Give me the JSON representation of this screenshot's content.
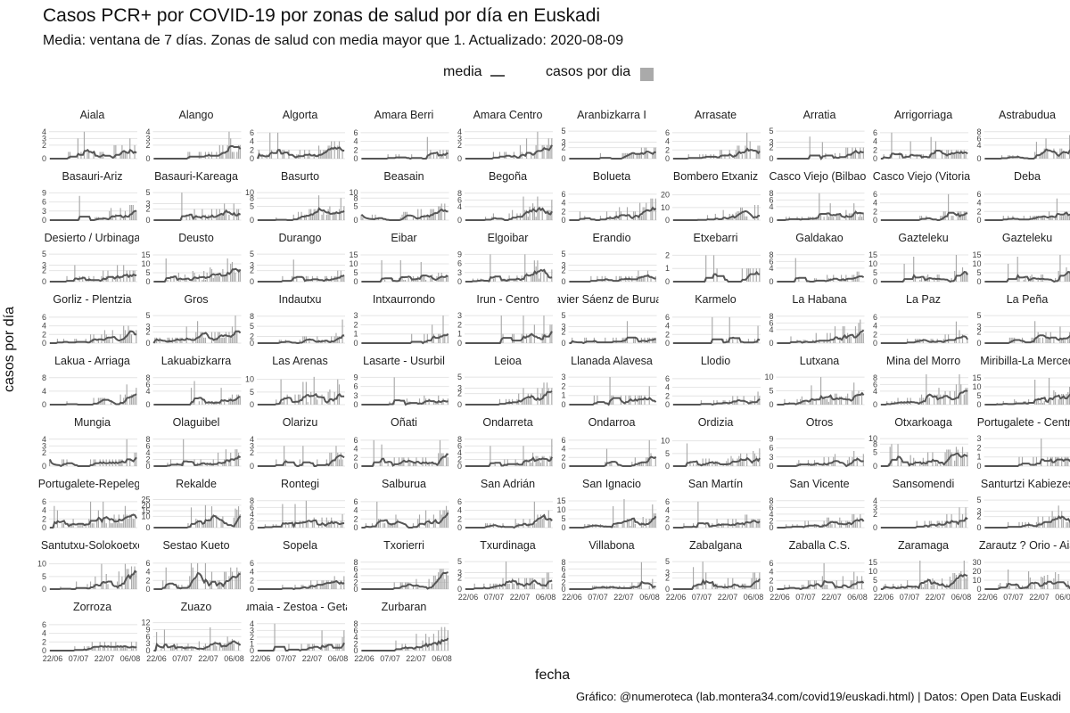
{
  "header": {
    "title": "Casos PCR+ por COVID-19 por zonas de salud por día en Euskadi",
    "subtitle": "Media: ventana de 7 días. Zonas de salud con media mayor que 1. Actualizado: 2020-08-09"
  },
  "legend": {
    "mean_label": "media",
    "bars_label": "casos por dia"
  },
  "colors": {
    "mean_line": "#555555",
    "bars": "#aaaaaa",
    "gridlines": "#e4e4e4"
  },
  "chart_data": {
    "type": "bar",
    "facet": "small multiples, 10 columns",
    "xlabel": "fecha",
    "ylabel": "casos por día",
    "x_ticks": [
      "22/06",
      "07/07",
      "22/07",
      "06/08"
    ],
    "date_range": [
      "2020-06-15",
      "2020-08-09"
    ],
    "series_names": [
      "media",
      "casos por dia"
    ],
    "panels": [
      {
        "name": "Aiala",
        "yticks": [
          0,
          2,
          3,
          4
        ],
        "ymax": 4.5
      },
      {
        "name": "Alango",
        "yticks": [
          0,
          2,
          3,
          4
        ],
        "ymax": 4.5
      },
      {
        "name": "Algorta",
        "yticks": [
          0,
          2,
          4,
          6
        ],
        "ymax": 7
      },
      {
        "name": "Amara Berri",
        "yticks": [
          0,
          2,
          4,
          6
        ],
        "ymax": 7
      },
      {
        "name": "Amara Centro",
        "yticks": [
          0,
          2,
          3,
          4
        ],
        "ymax": 4.5
      },
      {
        "name": "Aranbizkarra I",
        "yticks": [
          0,
          2,
          3,
          5
        ],
        "ymax": 5.5
      },
      {
        "name": "Arrasate",
        "yticks": [
          0,
          2,
          4,
          6
        ],
        "ymax": 7
      },
      {
        "name": "Arratia",
        "yticks": [
          0,
          2,
          3,
          5
        ],
        "ymax": 5.5
      },
      {
        "name": "Arrigorriaga",
        "yticks": [
          0,
          2,
          4,
          6
        ],
        "ymax": 7
      },
      {
        "name": "Astrabudua",
        "yticks": [
          0,
          4,
          6,
          8
        ],
        "ymax": 9
      },
      {
        "name": "Basauri-Ariz",
        "yticks": [
          0,
          3,
          6,
          9
        ],
        "ymax": 10
      },
      {
        "name": "Basauri-Kareaga",
        "yticks": [
          0,
          2,
          3,
          5
        ],
        "ymax": 5.5
      },
      {
        "name": "Basurto",
        "yticks": [
          0,
          5,
          8,
          10
        ],
        "ymax": 11
      },
      {
        "name": "Beasain",
        "yticks": [
          0,
          5,
          8,
          10
        ],
        "ymax": 11
      },
      {
        "name": "Begoña",
        "yticks": [
          0,
          4,
          6,
          8
        ],
        "ymax": 9
      },
      {
        "name": "Bolueta",
        "yticks": [
          0,
          2,
          4,
          6
        ],
        "ymax": 7
      },
      {
        "name": "Bombero Etxaniz",
        "yticks": [
          0,
          10,
          20
        ],
        "ymax": 24
      },
      {
        "name": "Casco Viejo (Bilbao)",
        "yticks": [
          0,
          4,
          6,
          8
        ],
        "ymax": 9
      },
      {
        "name": "Casco Viejo (Vitoria)",
        "yticks": [
          0,
          2,
          4,
          6
        ],
        "ymax": 7
      },
      {
        "name": "Deba",
        "yticks": [
          0,
          2,
          4,
          6
        ],
        "ymax": 7
      },
      {
        "name": "Desierto / Urbinaga",
        "yticks": [
          0,
          2,
          3,
          5
        ],
        "ymax": 5.5
      },
      {
        "name": "Deusto",
        "yticks": [
          0,
          5,
          10,
          15
        ],
        "ymax": 17
      },
      {
        "name": "Durango",
        "yticks": [
          0,
          2,
          3,
          5
        ],
        "ymax": 5.5
      },
      {
        "name": "Eibar",
        "yticks": [
          0,
          5,
          10,
          15
        ],
        "ymax": 17
      },
      {
        "name": "Elgoibar",
        "yticks": [
          0,
          3,
          6,
          9
        ],
        "ymax": 10
      },
      {
        "name": "Erandio",
        "yticks": [
          0,
          2,
          3,
          5
        ],
        "ymax": 5.5
      },
      {
        "name": "Etxebarri",
        "yticks": [
          0,
          1,
          2
        ],
        "ymax": 2.3
      },
      {
        "name": "Galdakao",
        "yticks": [
          0,
          4,
          6,
          8
        ],
        "ymax": 9
      },
      {
        "name": "Gazteleku",
        "yticks": [
          0,
          5,
          10,
          15
        ],
        "ymax": 17
      },
      {
        "name": "Gazteleku",
        "yticks": [
          0,
          5,
          10,
          15
        ],
        "ymax": 17
      },
      {
        "name": "Gorliz - Plentzia",
        "yticks": [
          0,
          2,
          4,
          6
        ],
        "ymax": 7
      },
      {
        "name": "Gros",
        "yticks": [
          0,
          2,
          3,
          5
        ],
        "ymax": 5.5
      },
      {
        "name": "Indautxu",
        "yticks": [
          0,
          2,
          5,
          8
        ],
        "ymax": 9
      },
      {
        "name": "Intxaurrondo",
        "yticks": [
          0,
          1,
          2,
          3
        ],
        "ymax": 3.3
      },
      {
        "name": "Irun - Centro",
        "yticks": [
          0,
          1,
          2,
          3
        ],
        "ymax": 3.3
      },
      {
        "name": "Javier Sáenz de Buruaga",
        "yticks": [
          0,
          2,
          3,
          5
        ],
        "ymax": 5.5
      },
      {
        "name": "Karmelo",
        "yticks": [
          0,
          2,
          4,
          6
        ],
        "ymax": 7
      },
      {
        "name": "La Habana",
        "yticks": [
          0,
          4,
          6,
          8
        ],
        "ymax": 9
      },
      {
        "name": "La Paz",
        "yticks": [
          0,
          2,
          4,
          6
        ],
        "ymax": 7
      },
      {
        "name": "La Peña",
        "yticks": [
          0,
          2,
          3,
          5
        ],
        "ymax": 5.5
      },
      {
        "name": "Lakua - Arriaga",
        "yticks": [
          0,
          4,
          8
        ],
        "ymax": 9
      },
      {
        "name": "Lakuabizkarra",
        "yticks": [
          0,
          4,
          6,
          8
        ],
        "ymax": 9
      },
      {
        "name": "Las Arenas",
        "yticks": [
          0,
          5,
          10
        ],
        "ymax": 12
      },
      {
        "name": "Lasarte - Usurbil",
        "yticks": [
          0,
          3,
          6,
          9
        ],
        "ymax": 10
      },
      {
        "name": "Leioa",
        "yticks": [
          0,
          2,
          3,
          5
        ],
        "ymax": 5.5
      },
      {
        "name": "Llanada Alavesa",
        "yticks": [
          0,
          1,
          2,
          3
        ],
        "ymax": 3.3
      },
      {
        "name": "Llodio",
        "yticks": [
          0,
          2,
          4,
          6
        ],
        "ymax": 7
      },
      {
        "name": "Lutxana",
        "yticks": [
          0,
          5,
          10
        ],
        "ymax": 11
      },
      {
        "name": "Mina del Morro",
        "yticks": [
          0,
          4,
          6,
          8
        ],
        "ymax": 9
      },
      {
        "name": "Miribilla-La Merced",
        "yticks": [
          0,
          5,
          10,
          15
        ],
        "ymax": 17
      },
      {
        "name": "Mungia",
        "yticks": [
          0,
          2,
          3,
          4
        ],
        "ymax": 4.5
      },
      {
        "name": "Olaguibel",
        "yticks": [
          0,
          2,
          4,
          6,
          8
        ],
        "ymax": 9
      },
      {
        "name": "Olarizu",
        "yticks": [
          0,
          2,
          3,
          4
        ],
        "ymax": 4.5
      },
      {
        "name": "Oñati",
        "yticks": [
          0,
          2,
          4,
          6
        ],
        "ymax": 7
      },
      {
        "name": "Ondarreta",
        "yticks": [
          0,
          2,
          4,
          6,
          8
        ],
        "ymax": 9
      },
      {
        "name": "Ondarroa",
        "yticks": [
          0,
          2,
          4,
          6
        ],
        "ymax": 7
      },
      {
        "name": "Ordizia",
        "yticks": [
          0,
          5,
          10
        ],
        "ymax": 12
      },
      {
        "name": "Otros",
        "yticks": [
          0,
          3,
          6,
          9
        ],
        "ymax": 10
      },
      {
        "name": "Otxarkoaga",
        "yticks": [
          0,
          5,
          8,
          10
        ],
        "ymax": 11
      },
      {
        "name": "Portugalete - Centro",
        "yticks": [
          0,
          1,
          2,
          3
        ],
        "ymax": 3.3
      },
      {
        "name": "Portugalete-Repelega",
        "yticks": [
          0,
          2,
          4,
          6
        ],
        "ymax": 7
      },
      {
        "name": "Rekalde",
        "yticks": [
          0,
          10,
          15,
          20,
          25
        ],
        "ymax": 27
      },
      {
        "name": "Rontegi",
        "yticks": [
          0,
          2,
          4,
          6,
          8
        ],
        "ymax": 9
      },
      {
        "name": "Salburua",
        "yticks": [
          0,
          2,
          4,
          6
        ],
        "ymax": 7
      },
      {
        "name": "San Adrián",
        "yticks": [
          0,
          2,
          4,
          6
        ],
        "ymax": 7
      },
      {
        "name": "San Ignacio",
        "yticks": [
          0,
          5,
          10,
          15
        ],
        "ymax": 17
      },
      {
        "name": "San Martín",
        "yticks": [
          0,
          2,
          4,
          6
        ],
        "ymax": 7
      },
      {
        "name": "San Vicente",
        "yticks": [
          0,
          2,
          4,
          6,
          8
        ],
        "ymax": 9
      },
      {
        "name": "Sansomendi",
        "yticks": [
          0,
          2,
          3,
          4
        ],
        "ymax": 4.5
      },
      {
        "name": "Santurtzi Kabiezes",
        "yticks": [
          0,
          2,
          3,
          5
        ],
        "ymax": 5.5
      },
      {
        "name": "Santutxu-Solokoetxe",
        "yticks": [
          0,
          5,
          10
        ],
        "ymax": 12
      },
      {
        "name": "Sestao Kueto",
        "yticks": [
          0,
          2,
          4,
          6
        ],
        "ymax": 7
      },
      {
        "name": "Sopela",
        "yticks": [
          0,
          2,
          4,
          6
        ],
        "ymax": 7
      },
      {
        "name": "Txorierri",
        "yticks": [
          0,
          2,
          4,
          6,
          8
        ],
        "ymax": 9
      },
      {
        "name": "Txurdinaga",
        "yticks": [
          0,
          2,
          3,
          5
        ],
        "ymax": 5.5
      },
      {
        "name": "Villabona",
        "yticks": [
          0,
          2,
          4,
          6,
          8
        ],
        "ymax": 9
      },
      {
        "name": "Zabalgana",
        "yticks": [
          0,
          2,
          3,
          5
        ],
        "ymax": 5.5
      },
      {
        "name": "Zaballa C.S.",
        "yticks": [
          0,
          2,
          4,
          6
        ],
        "ymax": 7
      },
      {
        "name": "Zaramaga",
        "yticks": [
          0,
          5,
          10,
          15
        ],
        "ymax": 17
      },
      {
        "name": "Zarautz ? Orio - Aia",
        "yticks": [
          0,
          10,
          20,
          30
        ],
        "ymax": 34
      },
      {
        "name": "Zorroza",
        "yticks": [
          0,
          2,
          4,
          6
        ],
        "ymax": 7
      },
      {
        "name": "Zuazo",
        "yticks": [
          0,
          3,
          6,
          9,
          12
        ],
        "ymax": 13
      },
      {
        "name": "Zumaia - Zestoa - Getaria",
        "yticks": [
          0,
          1,
          2,
          3,
          4
        ],
        "ymax": 4.5
      },
      {
        "name": "Zurbaran",
        "yticks": [
          0,
          2,
          4,
          6,
          8
        ],
        "ymax": 9
      }
    ]
  },
  "caption": "Gráfico: @numeroteca (lab.montera34.com/covid19/euskadi.html) | Datos: Open Data Euskadi"
}
